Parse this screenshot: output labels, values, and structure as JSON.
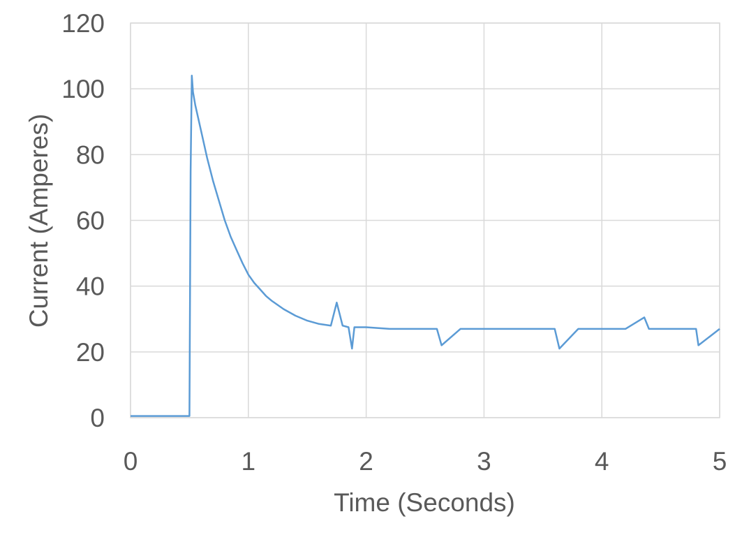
{
  "chart_data": {
    "type": "line",
    "title": "",
    "xlabel": "Time (Seconds)",
    "ylabel": "Current (Amperes)",
    "xlim": [
      0,
      5
    ],
    "ylim": [
      0,
      120
    ],
    "x_ticks": [
      "0",
      "1",
      "2",
      "3",
      "4",
      "5"
    ],
    "y_ticks": [
      "0",
      "20",
      "40",
      "60",
      "80",
      "100",
      "120"
    ],
    "grid": true,
    "legend": "none",
    "series": [
      {
        "color": "#5b9bd5",
        "x": [
          0,
          0.1,
          0.2,
          0.3,
          0.4,
          0.49,
          0.5,
          0.51,
          0.52,
          0.53,
          0.55,
          0.6,
          0.65,
          0.7,
          0.75,
          0.8,
          0.85,
          0.9,
          0.95,
          1.0,
          1.05,
          1.1,
          1.15,
          1.2,
          1.3,
          1.4,
          1.5,
          1.6,
          1.7,
          1.75,
          1.8,
          1.85,
          1.88,
          1.9,
          2.0,
          2.2,
          2.4,
          2.6,
          2.64,
          2.8,
          3.0,
          3.2,
          3.4,
          3.6,
          3.64,
          3.8,
          4.0,
          4.2,
          4.36,
          4.4,
          4.6,
          4.8,
          4.82,
          5.0
        ],
        "y": [
          0.5,
          0.5,
          0.5,
          0.5,
          0.5,
          0.5,
          0.5,
          75,
          104,
          99,
          95,
          87,
          79,
          72,
          66,
          60,
          55,
          51,
          47,
          43.5,
          41,
          39,
          37,
          35.5,
          33,
          31,
          29.5,
          28.5,
          28,
          35,
          28,
          27.5,
          21,
          27.5,
          27.5,
          27,
          27,
          27,
          22,
          27,
          27,
          27,
          27,
          27,
          21,
          27,
          27,
          27,
          30.5,
          27,
          27,
          27,
          22,
          27
        ]
      }
    ]
  }
}
